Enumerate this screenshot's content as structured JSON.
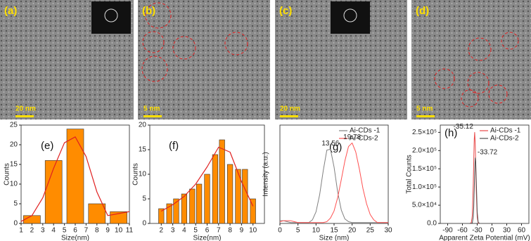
{
  "panels": [
    {
      "label": "(a)",
      "scale_bar": "20 nm"
    },
    {
      "label": "(b)",
      "scale_bar": "5 nm"
    },
    {
      "label": "(c)",
      "scale_bar": "20 nm"
    },
    {
      "label": "(d)",
      "scale_bar": "5 nm"
    }
  ],
  "chart_data": [
    {
      "type": "bar",
      "label": "(e)",
      "x_label": "Size(nm)",
      "y_label": "Counts",
      "x": [
        2,
        4,
        6,
        8,
        10
      ],
      "values": [
        2,
        16,
        24,
        5,
        3
      ],
      "color": "#ff8c00",
      "fit": {
        "color": "#e02020",
        "x": [
          1,
          2,
          3,
          4,
          5,
          6,
          7,
          8,
          9,
          10,
          11
        ],
        "values": [
          0.5,
          2,
          6.5,
          14,
          20.5,
          22,
          17,
          8,
          2,
          2.5,
          3
        ]
      },
      "xlim": [
        1,
        11
      ],
      "xticks": [
        1,
        2,
        3,
        4,
        5,
        6,
        7,
        8,
        9,
        10,
        11
      ],
      "ylim": [
        0,
        25
      ],
      "yticks": [
        0,
        5,
        10,
        15,
        20,
        25
      ]
    },
    {
      "type": "bar",
      "label": "(f)",
      "x_label": "Size(nm)",
      "y_label": "Counts",
      "x": [
        2,
        2.7,
        3.3,
        4,
        4.7,
        5.3,
        6,
        6.7,
        7.3,
        8,
        8.7,
        9.3,
        10
      ],
      "values": [
        3,
        4,
        5,
        6,
        7,
        8,
        10,
        14,
        17,
        12,
        11,
        11,
        5
      ],
      "color": "#ff8c00",
      "fit": {
        "color": "#e02020",
        "x": [
          2,
          3,
          4,
          5,
          6,
          7,
          8,
          9,
          10
        ],
        "values": [
          2.5,
          3.8,
          5.5,
          8,
          11.5,
          15.5,
          14.5,
          8.5,
          3.5
        ]
      },
      "xlim": [
        1,
        11
      ],
      "xticks": [
        2,
        3,
        4,
        5,
        6,
        7,
        8,
        9,
        10
      ],
      "ylim": [
        0,
        20
      ],
      "yticks": [
        0,
        5,
        10,
        15,
        20
      ]
    },
    {
      "type": "line",
      "label": "(g)",
      "x_label": "Size (nm)",
      "y_label": "Intensity (a.u.)",
      "x": [
        0,
        1,
        2,
        3,
        4,
        5,
        6,
        7,
        8,
        9,
        10,
        11,
        12,
        13,
        14,
        15,
        16,
        17,
        18,
        19,
        20,
        21,
        22,
        23,
        24,
        25,
        26,
        27,
        28,
        29,
        30
      ],
      "series": [
        {
          "name": "Ai-CDs -1",
          "color": "#808080",
          "values": [
            0.03,
            0.03,
            0.02,
            0.01,
            0.01,
            0.01,
            0.01,
            0.01,
            0.01,
            0.04,
            0.13,
            0.32,
            0.59,
            0.82,
            0.83,
            0.63,
            0.35,
            0.15,
            0.05,
            0.02,
            0.01,
            0.01,
            0.01,
            0.01,
            0.01,
            0.01,
            0.01,
            0.01,
            0.01,
            0.01,
            0.01
          ]
        },
        {
          "name": "Ai-CDs-2",
          "color": "#ff5050",
          "values": [
            0.02,
            0.03,
            0.03,
            0.03,
            0.02,
            0.01,
            0.01,
            0.01,
            0.01,
            0.01,
            0.01,
            0.01,
            0.01,
            0.02,
            0.06,
            0.14,
            0.29,
            0.49,
            0.7,
            0.86,
            0.9,
            0.8,
            0.61,
            0.39,
            0.22,
            0.1,
            0.04,
            0.01,
            0.01,
            0.01,
            0.01
          ]
        }
      ],
      "annotations": [
        "13.56",
        "19.78"
      ],
      "xlim": [
        0,
        30
      ],
      "xticks": [
        0,
        5,
        10,
        15,
        20,
        25,
        30
      ],
      "ylim": [
        0,
        1.1
      ],
      "legend": "upper-right"
    },
    {
      "type": "line",
      "label": "(h)",
      "x_label": "Apparent Zeta Potential (mV)",
      "y_label": "Total Counts",
      "x": [
        -105,
        -45,
        -42,
        -40,
        -38,
        -37,
        -36,
        -35.12,
        -34,
        -33.72,
        -33,
        -32,
        -30,
        -28,
        -25,
        75
      ],
      "series": [
        {
          "name": "Ai-CDs -1",
          "color": "#e84848",
          "values": [
            0,
            0,
            2000,
            21000,
            106000,
            174000,
            231000,
            250000,
            220000,
            204000,
            158000,
            92000,
            17000,
            1000,
            0,
            0
          ]
        },
        {
          "name": "Ai-CDs-2",
          "color": "#505050",
          "values": [
            0,
            0,
            0,
            1300,
            18000,
            47000,
            94000,
            141000,
            178000,
            180000,
            169000,
            124000,
            32000,
            3000,
            0,
            0
          ]
        }
      ],
      "annotations": [
        "-35.12",
        "-33.72"
      ],
      "xlim": [
        -105,
        75
      ],
      "xticks": [
        -90,
        -60,
        -30,
        0,
        30,
        60
      ],
      "ylim": [
        0,
        270000
      ],
      "yticks": [
        {
          "value": 0,
          "label": "0.0"
        },
        {
          "value": 50000,
          "label": "5.0×10⁴"
        },
        {
          "value": 100000,
          "label": "1.0×10⁵"
        },
        {
          "value": 150000,
          "label": "1.5×10⁵"
        },
        {
          "value": 200000,
          "label": "2.0×10⁵"
        },
        {
          "value": 250000,
          "label": "2.5×10⁵"
        }
      ],
      "legend": "upper-right"
    }
  ]
}
